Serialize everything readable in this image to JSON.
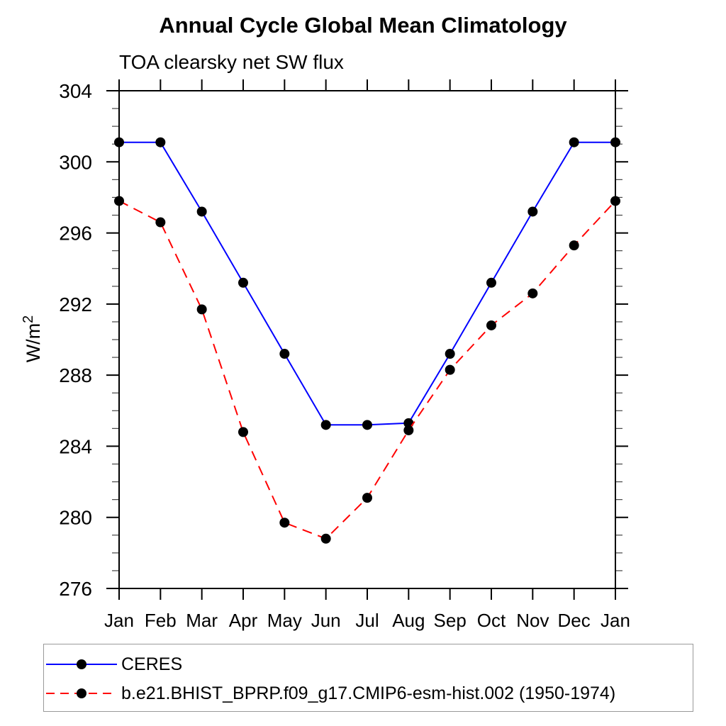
{
  "title": "Annual Cycle Global Mean Climatology",
  "subtitle": "TOA clearsky net SW flux",
  "colors": {
    "axis": "#000000",
    "minor_tick": "#444444",
    "background": "#ffffff",
    "legend_border": "#999999",
    "text": "#000000"
  },
  "chart_data": {
    "type": "line",
    "title": "Annual Cycle Global Mean Climatology",
    "subtitle": "TOA clearsky net SW flux",
    "categories": [
      "Jan",
      "Feb",
      "Mar",
      "Apr",
      "May",
      "Jun",
      "Jul",
      "Aug",
      "Sep",
      "Oct",
      "Nov",
      "Dec",
      "Jan"
    ],
    "xlabel": "",
    "ylabel": "W/m²",
    "ylabel_base": "W/m",
    "ylabel_exponent": "2",
    "ylim": [
      276,
      304
    ],
    "y_major_ticks": [
      276,
      280,
      284,
      288,
      292,
      296,
      300,
      304
    ],
    "y_minor_step": 1,
    "grid": false,
    "legend_position": "bottom",
    "series": [
      {
        "name": "CERES",
        "color": "#0000ff",
        "line_style": "solid",
        "marker": "circle",
        "marker_color": "#000000",
        "values": [
          301.1,
          301.1,
          297.2,
          293.2,
          289.2,
          285.2,
          285.2,
          285.3,
          289.2,
          293.2,
          297.2,
          301.1,
          301.1
        ]
      },
      {
        "name": "b.e21.BHIST_BPRP.f09_g17.CMIP6-esm-hist.002 (1950-1974)",
        "color": "#ff0000",
        "line_style": "dashed",
        "marker": "circle",
        "marker_color": "#000000",
        "values": [
          297.8,
          296.6,
          291.7,
          284.8,
          279.7,
          278.8,
          281.1,
          284.9,
          288.3,
          290.8,
          292.6,
          295.3,
          297.8
        ]
      }
    ]
  }
}
